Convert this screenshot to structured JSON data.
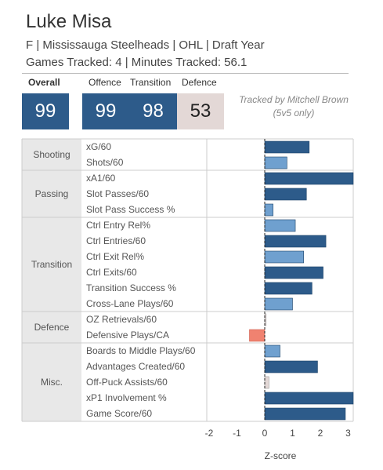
{
  "header": {
    "name": "Luke Misa",
    "info": "F | Mississauga Steelheads | OHL | Draft Year",
    "tracked": "Games Tracked: 4 | Minutes Tracked: 56.1"
  },
  "scores": {
    "overall_label": "Overall",
    "overall_value": "99",
    "offence_label": "Offence",
    "offence_value": "99",
    "transition_label": "Transition",
    "transition_value": "98",
    "defence_label": "Defence",
    "defence_value": "53"
  },
  "credit": "Tracked by Mitchell Brown (5v5 only)",
  "colors": {
    "dark_blue": "#2d5b8a",
    "light_blue": "#6fa0cf",
    "negative": "#f08270",
    "neutral": "#e3d8d6",
    "category_bg": "#e8e8e8"
  },
  "chart_data": {
    "type": "bar",
    "orientation": "horizontal",
    "xlabel": "Z-score",
    "xlim": [
      -2,
      3
    ],
    "xticks": [
      "-2",
      "-1",
      "0",
      "1",
      "2",
      "3"
    ],
    "groups": [
      {
        "category": "Shooting",
        "metrics": [
          {
            "label": "xG/60",
            "value": 1.6
          },
          {
            "label": "Shots/60",
            "value": 0.8
          }
        ]
      },
      {
        "category": "Passing",
        "metrics": [
          {
            "label": "xA1/60",
            "value": 3.3
          },
          {
            "label": "Slot Passes/60",
            "value": 1.5
          },
          {
            "label": "Slot Pass Success %",
            "value": 0.3
          }
        ]
      },
      {
        "category": "Transition",
        "metrics": [
          {
            "label": "Ctrl Entry Rel%",
            "value": 1.1
          },
          {
            "label": "Ctrl Entries/60",
            "value": 2.2
          },
          {
            "label": "Ctrl Exit Rel%",
            "value": 1.4
          },
          {
            "label": "Ctrl Exits/60",
            "value": 2.1
          },
          {
            "label": "Transition Success %",
            "value": 1.7
          },
          {
            "label": "Cross-Lane Plays/60",
            "value": 1.0
          }
        ]
      },
      {
        "category": "Defence",
        "metrics": [
          {
            "label": "OZ Retrievals/60",
            "value": 0.05
          },
          {
            "label": "Defensive Plays/CA",
            "value": -0.55
          }
        ]
      },
      {
        "category": "Misc.",
        "metrics": [
          {
            "label": "Boards to Middle Plays/60",
            "value": 0.55
          },
          {
            "label": "Advantages Created/60",
            "value": 1.9
          },
          {
            "label": "Off-Puck Assists/60",
            "value": 0.15
          },
          {
            "label": "xP1 Involvement %",
            "value": 3.4
          },
          {
            "label": "Game Score/60",
            "value": 2.9
          }
        ]
      }
    ]
  }
}
